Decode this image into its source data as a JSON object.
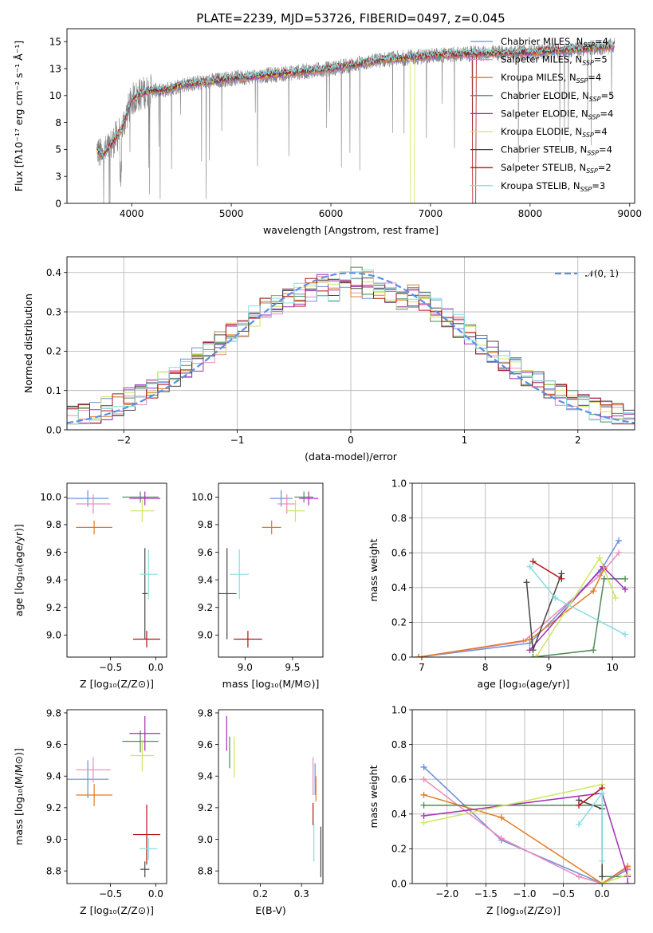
{
  "chart_data": [
    {
      "id": "spectrum",
      "type": "line",
      "title": "PLATE=2239, MJD=53726, FIBERID=0497, z=0.045",
      "xlabel": "wavelength [Angstrom, rest frame]",
      "ylabel": "Flux [fλ10⁻¹⁷ erg cm⁻² s⁻¹ Å⁻¹]",
      "xlim": [
        3350,
        9050
      ],
      "ylim": [
        0,
        16.2
      ],
      "xticks": [
        4000,
        5000,
        6000,
        7000,
        8000,
        9000
      ],
      "yticks": [
        0.0,
        2.5,
        5.0,
        7.5,
        10.0,
        12.5,
        15.0
      ],
      "data_range": [
        3650,
        8850
      ],
      "continuum": {
        "x": [
          3650,
          3700,
          3800,
          3900,
          4000,
          4100,
          4200,
          4300,
          4500,
          4700,
          5000,
          5500,
          6000,
          6500,
          7000,
          7500,
          8000,
          8500,
          8850
        ],
        "y": [
          5.0,
          4.4,
          5.5,
          6.9,
          9.6,
          10.2,
          10.5,
          10.4,
          11.0,
          11.2,
          11.6,
          12.0,
          12.5,
          13.3,
          13.7,
          13.9,
          14.0,
          14.3,
          14.6
        ]
      },
      "dropouts": [
        {
          "series": 5,
          "x": 6800
        },
        {
          "series": 7,
          "x": 7420
        }
      ],
      "legend": [
        {
          "label": "Chabrier MILES, N",
          "sub": "SSP",
          "tail": "=4"
        },
        {
          "label": "Salpeter MILES, N",
          "sub": "SSP",
          "tail": "=5"
        },
        {
          "label": "Kroupa MILES, N",
          "sub": "SSP",
          "tail": "=4"
        },
        {
          "label": "Chabrier ELODIE, N",
          "sub": "SSP",
          "tail": "=5"
        },
        {
          "label": "Salpeter ELODIE, N",
          "sub": "SSP",
          "tail": "=4"
        },
        {
          "label": "Kroupa ELODIE, N",
          "sub": "SSP",
          "tail": "=4"
        },
        {
          "label": "Chabrier STELIB, N",
          "sub": "SSP",
          "tail": "=4"
        },
        {
          "label": "Salpeter STELIB, N",
          "sub": "SSP",
          "tail": "=2"
        },
        {
          "label": "Kroupa STELIB, N",
          "sub": "SSP",
          "tail": "=3"
        }
      ],
      "legend_loc": "upper right"
    },
    {
      "id": "residuals",
      "type": "step-histogram",
      "xlabel": "(data-model)/error",
      "ylabel": "Normed distribution",
      "xlim": [
        -2.5,
        2.5
      ],
      "ylim": [
        0,
        0.44
      ],
      "xticks": [
        -2,
        -1,
        0,
        1,
        2
      ],
      "yticks": [
        0.0,
        0.1,
        0.2,
        0.3,
        0.4
      ],
      "bin_width": 0.1,
      "reference_curve": {
        "label": "𝒩(0, 1)",
        "mean": 0,
        "sigma": 1,
        "color": "#5b8ee6"
      },
      "grid": true
    },
    {
      "id": "age_vs_Z",
      "type": "errorbar",
      "xlabel": "Z [log₁₀(Z/Z⊙)]",
      "ylabel": "age  [log₁₀(age/yr)]",
      "xlim": [
        -0.98,
        0.12
      ],
      "ylim": [
        8.84,
        10.1
      ],
      "xticks": [
        -0.5,
        -0.0
      ],
      "xtick_labels": [
        "−0.5",
        "0.0"
      ],
      "yticks": [
        9.0,
        9.2,
        9.4,
        9.6,
        9.8,
        10.0
      ],
      "points": [
        {
          "s": 0,
          "x": -0.75,
          "xerr": 0.23,
          "y": 9.99,
          "yerr": 0.06
        },
        {
          "s": 1,
          "x": -0.69,
          "xerr": 0.19,
          "y": 9.95,
          "yerr": 0.07
        },
        {
          "s": 2,
          "x": -0.68,
          "xerr": 0.2,
          "y": 9.78,
          "yerr": 0.05
        },
        {
          "s": 3,
          "x": -0.17,
          "xerr": 0.2,
          "y": 10.0,
          "yerr": 0.04
        },
        {
          "s": 4,
          "x": -0.12,
          "xerr": 0.17,
          "y": 9.99,
          "yerr": 0.05
        },
        {
          "s": 5,
          "x": -0.15,
          "xerr": 0.13,
          "y": 9.9,
          "yerr": 0.08
        },
        {
          "s": 6,
          "x": -0.12,
          "xerr": 0.03,
          "y": 9.3,
          "yerr": 0.33
        },
        {
          "s": 7,
          "x": -0.1,
          "xerr": 0.15,
          "y": 8.97,
          "yerr": 0.06
        },
        {
          "s": 8,
          "x": -0.08,
          "xerr": 0.1,
          "y": 9.44,
          "yerr": 0.18
        }
      ]
    },
    {
      "id": "age_vs_mass",
      "type": "errorbar",
      "xlabel": "mass [log₁₀(M/M⊙)]",
      "ylabel": "",
      "xlim": [
        8.72,
        9.82
      ],
      "ylim": [
        8.84,
        10.1
      ],
      "xticks": [
        9.0,
        9.5
      ],
      "xtick_labels": [
        "9.0",
        "9.5"
      ],
      "yticks": [
        9.0,
        9.2,
        9.4,
        9.6,
        9.8,
        10.0
      ],
      "points": [
        {
          "s": 0,
          "x": 9.38,
          "xerr": 0.12,
          "y": 9.99,
          "yerr": 0.06
        },
        {
          "s": 1,
          "x": 9.44,
          "xerr": 0.1,
          "y": 9.95,
          "yerr": 0.07
        },
        {
          "s": 2,
          "x": 9.28,
          "xerr": 0.1,
          "y": 9.78,
          "yerr": 0.05
        },
        {
          "s": 3,
          "x": 9.62,
          "xerr": 0.1,
          "y": 10.0,
          "yerr": 0.04
        },
        {
          "s": 4,
          "x": 9.67,
          "xerr": 0.1,
          "y": 9.99,
          "yerr": 0.05
        },
        {
          "s": 5,
          "x": 9.53,
          "xerr": 0.1,
          "y": 9.9,
          "yerr": 0.08
        },
        {
          "s": 6,
          "x": 8.81,
          "xerr": 0.1,
          "y": 9.3,
          "yerr": 0.33
        },
        {
          "s": 7,
          "x": 9.03,
          "xerr": 0.15,
          "y": 8.97,
          "yerr": 0.06
        },
        {
          "s": 8,
          "x": 8.94,
          "xerr": 0.1,
          "y": 9.44,
          "yerr": 0.18
        }
      ]
    },
    {
      "id": "weight_vs_age",
      "type": "line",
      "xlabel": "age  [log₁₀(age/yr)]",
      "ylabel": "mass weight",
      "xlim": [
        6.85,
        10.35
      ],
      "ylim": [
        0,
        1.0
      ],
      "xticks": [
        7,
        8,
        9,
        10
      ],
      "yticks": [
        0.0,
        0.2,
        0.4,
        0.6,
        0.8,
        1.0
      ],
      "grid": true,
      "series": [
        {
          "s": 0,
          "x": [
            6.95,
            8.7,
            9.82,
            10.1
          ],
          "y": [
            0.0,
            0.08,
            0.5,
            0.67
          ]
        },
        {
          "s": 1,
          "x": [
            6.95,
            8.6,
            9.8,
            10.1
          ],
          "y": [
            0.0,
            0.09,
            0.47,
            0.6
          ]
        },
        {
          "s": 2,
          "x": [
            6.95,
            8.7,
            9.7,
            9.87
          ],
          "y": [
            0.0,
            0.1,
            0.38,
            0.51
          ]
        },
        {
          "s": 3,
          "x": [
            8.75,
            9.7,
            9.87,
            10.2
          ],
          "y": [
            0.0,
            0.04,
            0.45,
            0.45
          ]
        },
        {
          "s": 4,
          "x": [
            8.7,
            9.85,
            10.2
          ],
          "y": [
            0.04,
            0.52,
            0.39
          ]
        },
        {
          "s": 5,
          "x": [
            8.8,
            9.8,
            10.05
          ],
          "y": [
            0.0,
            0.57,
            0.34
          ]
        },
        {
          "s": 6,
          "x": [
            8.65,
            8.75,
            9.2
          ],
          "y": [
            0.43,
            0.04,
            0.48
          ]
        },
        {
          "s": 7,
          "x": [
            8.75,
            9.2
          ],
          "y": [
            0.55,
            0.45
          ]
        },
        {
          "s": 8,
          "x": [
            8.7,
            9.1,
            10.2
          ],
          "y": [
            0.52,
            0.34,
            0.13
          ]
        }
      ]
    },
    {
      "id": "mass_vs_Z",
      "type": "errorbar",
      "xlabel": "Z [log₁₀(Z/Z⊙)]",
      "ylabel": "mass [log₁₀(M/M⊙)]",
      "xlim": [
        -0.98,
        0.12
      ],
      "ylim": [
        8.72,
        9.82
      ],
      "xticks": [
        -0.5,
        -0.0
      ],
      "xtick_labels": [
        "−0.5",
        "0.0"
      ],
      "yticks": [
        8.8,
        9.0,
        9.2,
        9.4,
        9.6,
        9.8
      ],
      "points": [
        {
          "s": 0,
          "x": -0.75,
          "xerr": 0.23,
          "y": 9.38,
          "yerr": 0.12
        },
        {
          "s": 1,
          "x": -0.69,
          "xerr": 0.19,
          "y": 9.44,
          "yerr": 0.08
        },
        {
          "s": 2,
          "x": -0.68,
          "xerr": 0.2,
          "y": 9.28,
          "yerr": 0.07
        },
        {
          "s": 3,
          "x": -0.17,
          "xerr": 0.2,
          "y": 9.62,
          "yerr": 0.07
        },
        {
          "s": 4,
          "x": -0.12,
          "xerr": 0.17,
          "y": 9.67,
          "yerr": 0.11
        },
        {
          "s": 5,
          "x": -0.15,
          "xerr": 0.13,
          "y": 9.53,
          "yerr": 0.1
        },
        {
          "s": 6,
          "x": -0.12,
          "xerr": 0.05,
          "y": 8.81,
          "yerr": 0.05
        },
        {
          "s": 7,
          "x": -0.1,
          "xerr": 0.15,
          "y": 9.03,
          "yerr": 0.19
        },
        {
          "s": 8,
          "x": -0.08,
          "xerr": 0.1,
          "y": 8.94,
          "yerr": 0.07
        }
      ]
    },
    {
      "id": "mass_vs_ebv",
      "type": "errorbar",
      "xlabel": "E(B-V)",
      "ylabel": "",
      "xlim": [
        0.098,
        0.352
      ],
      "ylim": [
        8.72,
        9.82
      ],
      "xticks": [
        0.2,
        0.3
      ],
      "xtick_labels": [
        "0.2",
        "0.3"
      ],
      "yticks": [
        8.8,
        9.0,
        9.2,
        9.4,
        9.6,
        9.8
      ],
      "points": [
        {
          "s": 0,
          "x": 0.333,
          "xerr": 0.0,
          "y": 9.38,
          "yerr": 0.1
        },
        {
          "s": 1,
          "x": 0.328,
          "xerr": 0.0,
          "y": 9.4,
          "yerr": 0.12
        },
        {
          "s": 2,
          "x": 0.335,
          "xerr": 0.0,
          "y": 9.32,
          "yerr": 0.08
        },
        {
          "s": 3,
          "x": 0.125,
          "xerr": 0.0,
          "y": 9.55,
          "yerr": 0.1
        },
        {
          "s": 4,
          "x": 0.118,
          "xerr": 0.0,
          "y": 9.67,
          "yerr": 0.11
        },
        {
          "s": 5,
          "x": 0.136,
          "xerr": 0.0,
          "y": 9.52,
          "yerr": 0.13
        },
        {
          "s": 6,
          "x": 0.347,
          "xerr": 0.0,
          "y": 8.92,
          "yerr": 0.16
        },
        {
          "s": 7,
          "x": 0.328,
          "xerr": 0.0,
          "y": 9.16,
          "yerr": 0.07
        },
        {
          "s": 8,
          "x": 0.33,
          "xerr": 0.0,
          "y": 8.98,
          "yerr": 0.12
        }
      ]
    },
    {
      "id": "weight_vs_Z",
      "type": "line",
      "xlabel": "Z [log₁₀(Z/Z⊙)]",
      "ylabel": "mass weight",
      "xlim": [
        -2.45,
        0.42
      ],
      "ylim": [
        0,
        1.0
      ],
      "xticks": [
        -2.0,
        -1.5,
        -1.0,
        -0.5,
        0.0
      ],
      "xtick_labels": [
        "−2.0",
        "−1.5",
        "−1.0",
        "−0.5",
        "0.0"
      ],
      "yticks": [
        0.0,
        0.2,
        0.4,
        0.6,
        0.8,
        1.0
      ],
      "grid": true,
      "series": [
        {
          "s": 0,
          "x": [
            -2.3,
            -1.3,
            0.0,
            0.33
          ],
          "y": [
            0.67,
            0.25,
            0.0,
            0.08
          ]
        },
        {
          "s": 1,
          "x": [
            -2.3,
            -1.3,
            -0.3,
            0.0,
            0.33
          ],
          "y": [
            0.6,
            0.26,
            0.04,
            0.0,
            0.09
          ]
        },
        {
          "s": 2,
          "x": [
            -2.3,
            -1.3,
            0.0,
            0.33
          ],
          "y": [
            0.51,
            0.38,
            0.0,
            0.1
          ]
        },
        {
          "s": 3,
          "x": [
            -2.3,
            0.0,
            0.0,
            0.33
          ],
          "y": [
            0.45,
            0.45,
            0.04,
            0.04
          ]
        },
        {
          "s": 4,
          "x": [
            -2.3,
            0.0,
            0.33,
            0.33
          ],
          "y": [
            0.39,
            0.52,
            0.04,
            0.0
          ]
        },
        {
          "s": 5,
          "x": [
            -2.3,
            0.0,
            0.0,
            0.33
          ],
          "y": [
            0.35,
            0.57,
            0.0,
            0.05
          ]
        },
        {
          "s": 6,
          "x": [
            -0.3,
            0.0,
            0.0
          ],
          "y": [
            0.48,
            0.43,
            0.04
          ]
        },
        {
          "s": 7,
          "x": [
            -0.3,
            0.0
          ],
          "y": [
            0.45,
            0.55
          ]
        },
        {
          "s": 8,
          "x": [
            -0.3,
            0.0,
            0.0
          ],
          "y": [
            0.34,
            0.52,
            0.13
          ]
        }
      ]
    }
  ],
  "series_colors": [
    "#6a8fd8",
    "#e98ab7",
    "#e07b25",
    "#4d8b57",
    "#a32eb5",
    "#cfe55c",
    "#454545",
    "#b21317",
    "#86dde0"
  ]
}
